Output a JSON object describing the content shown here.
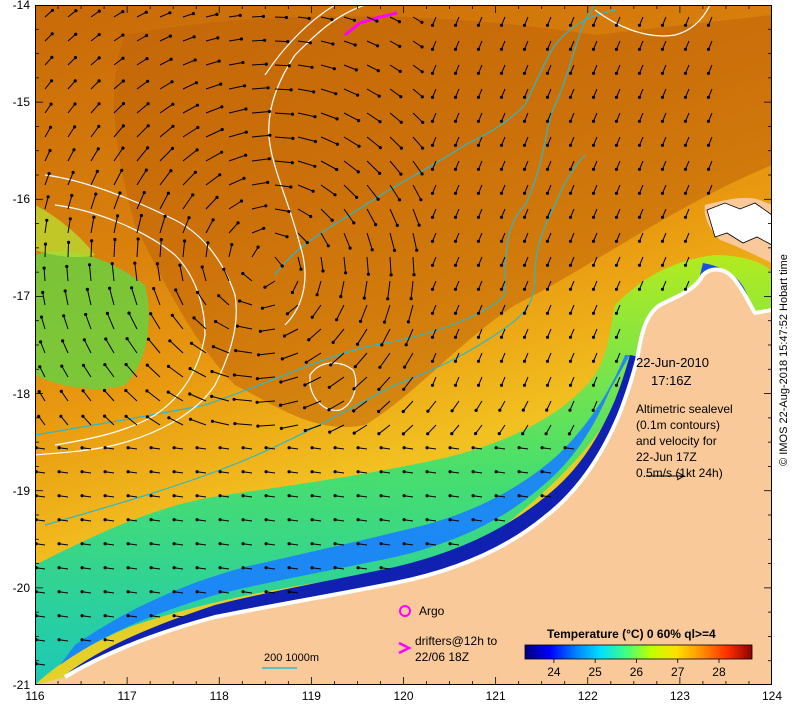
{
  "map": {
    "x_ticks": [
      "116",
      "117",
      "118",
      "119",
      "120",
      "121",
      "122",
      "123",
      "124"
    ],
    "y_ticks": [
      "-14",
      "-15",
      "-16",
      "-17",
      "-18",
      "-19",
      "-20",
      "-21"
    ],
    "lon_range": [
      116,
      124
    ],
    "lat_range": [
      -21,
      -14
    ]
  },
  "annotations": {
    "date": "22-Jun-2010",
    "time": "17:16Z",
    "altimetry_lines": [
      "Altimetric sealevel",
      "(0.1m contours)",
      "and velocity for",
      "22-Jun 17Z",
      "0.5m/s (1kt 24h)"
    ],
    "argo_label": "Argo",
    "drifters_lines": [
      "drifters@12h to",
      "22/06 18Z"
    ],
    "isobath_label": "200  1000m",
    "credit": "© IMOS 22-Aug-2018 15:47:52 Hobart time"
  },
  "colorbar": {
    "title": "Temperature (°C) 0 60% ql>=4",
    "ticks": [
      "24",
      "25",
      "26",
      "27",
      "28"
    ],
    "range": [
      23.3,
      28.8
    ],
    "stops": [
      "#00007f",
      "#0000ff",
      "#0080ff",
      "#00e0ff",
      "#40ff80",
      "#c0ff00",
      "#ffe000",
      "#ff9000",
      "#ff3000",
      "#900000"
    ]
  },
  "colors": {
    "land": "#f9c99a",
    "warm": "#d4780a",
    "drifter": "#ff00ff",
    "isobath": "#2ab9c9",
    "contour": "#ffffff"
  }
}
